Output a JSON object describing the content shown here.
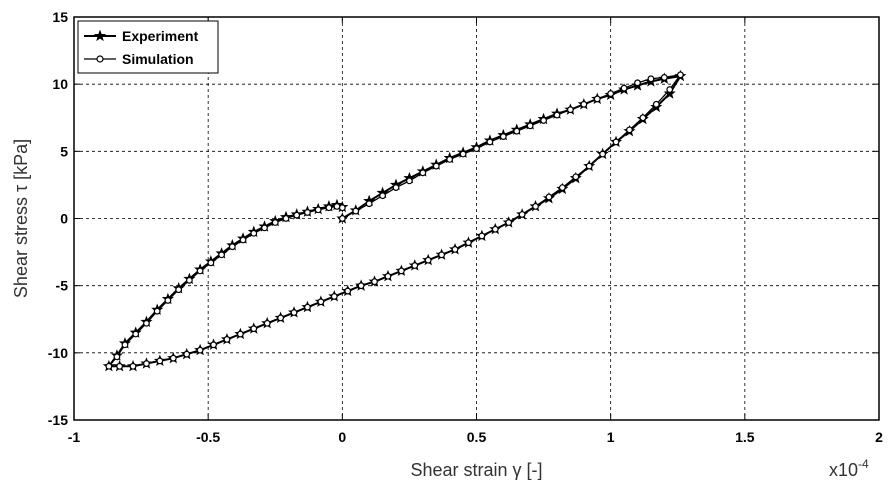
{
  "chart_data": {
    "type": "line",
    "title": "",
    "xlabel": "Shear strain γ [-]",
    "ylabel": "Shear stress τ [kPa]",
    "x_multiplier": {
      "base": "x10",
      "exponent": "-4"
    },
    "xlim": [
      -1,
      2
    ],
    "ylim": [
      -15,
      15
    ],
    "xticks": [
      -1,
      -0.5,
      0,
      0.5,
      1,
      1.5,
      2
    ],
    "yticks": [
      -15,
      -10,
      -5,
      0,
      5,
      10,
      15
    ],
    "xtick_labels": [
      "-1",
      "-0.5",
      "0",
      "0.5",
      "1",
      "1.5",
      "2"
    ],
    "ytick_labels": [
      "-15",
      "-10",
      "-5",
      "0",
      "5",
      "10",
      "15"
    ],
    "grid": true,
    "legend_position": "top-left",
    "series": [
      {
        "name": "Experiment",
        "marker": "star",
        "x": [
          0.0,
          0.05,
          0.1,
          0.15,
          0.2,
          0.25,
          0.3,
          0.35,
          0.4,
          0.45,
          0.5,
          0.55,
          0.6,
          0.65,
          0.7,
          0.75,
          0.8,
          0.85,
          0.9,
          0.95,
          1.0,
          1.05,
          1.1,
          1.15,
          1.2,
          1.26,
          1.22,
          1.17,
          1.12,
          1.07,
          1.02,
          0.97,
          0.92,
          0.87,
          0.82,
          0.77,
          0.72,
          0.67,
          0.62,
          0.57,
          0.52,
          0.47,
          0.42,
          0.37,
          0.32,
          0.27,
          0.22,
          0.17,
          0.12,
          0.07,
          0.02,
          -0.03,
          -0.08,
          -0.13,
          -0.18,
          -0.23,
          -0.28,
          -0.33,
          -0.38,
          -0.43,
          -0.48,
          -0.53,
          -0.58,
          -0.63,
          -0.68,
          -0.73,
          -0.78,
          -0.83,
          -0.87,
          -0.84,
          -0.81,
          -0.77,
          -0.73,
          -0.69,
          -0.65,
          -0.61,
          -0.57,
          -0.53,
          -0.49,
          -0.45,
          -0.41,
          -0.37,
          -0.33,
          -0.29,
          -0.25,
          -0.21,
          -0.17,
          -0.13,
          -0.09,
          -0.05,
          -0.02,
          0.0
        ],
        "y": [
          0.0,
          0.6,
          1.3,
          1.9,
          2.5,
          3.0,
          3.5,
          4.0,
          4.5,
          4.9,
          5.3,
          5.8,
          6.2,
          6.6,
          7.0,
          7.4,
          7.8,
          8.1,
          8.5,
          8.9,
          9.2,
          9.6,
          9.9,
          10.2,
          10.4,
          10.6,
          9.3,
          8.3,
          7.4,
          6.5,
          5.7,
          4.8,
          3.9,
          3.0,
          2.2,
          1.5,
          0.9,
          0.3,
          -0.3,
          -0.8,
          -1.3,
          -1.8,
          -2.3,
          -2.7,
          -3.1,
          -3.5,
          -3.9,
          -4.3,
          -4.7,
          -5.0,
          -5.4,
          -5.8,
          -6.2,
          -6.6,
          -7.0,
          -7.4,
          -7.8,
          -8.2,
          -8.6,
          -9.0,
          -9.4,
          -9.8,
          -10.1,
          -10.4,
          -10.6,
          -10.8,
          -11.0,
          -11.0,
          -11.0,
          -10.2,
          -9.3,
          -8.5,
          -7.7,
          -6.8,
          -6.0,
          -5.2,
          -4.5,
          -3.8,
          -3.2,
          -2.6,
          -2.0,
          -1.5,
          -1.0,
          -0.6,
          -0.2,
          0.1,
          0.3,
          0.5,
          0.7,
          0.9,
          1.0,
          0.85
        ]
      },
      {
        "name": "Simulation",
        "marker": "open-circle",
        "x": [
          0.0,
          0.05,
          0.1,
          0.15,
          0.2,
          0.25,
          0.3,
          0.35,
          0.4,
          0.45,
          0.5,
          0.55,
          0.6,
          0.65,
          0.7,
          0.75,
          0.8,
          0.85,
          0.9,
          0.95,
          1.0,
          1.05,
          1.1,
          1.15,
          1.2,
          1.26,
          1.22,
          1.17,
          1.12,
          1.07,
          1.02,
          0.97,
          0.92,
          0.87,
          0.82,
          0.77,
          0.72,
          0.67,
          0.62,
          0.57,
          0.52,
          0.47,
          0.42,
          0.37,
          0.32,
          0.27,
          0.22,
          0.17,
          0.12,
          0.07,
          0.02,
          -0.03,
          -0.08,
          -0.13,
          -0.18,
          -0.23,
          -0.28,
          -0.33,
          -0.38,
          -0.43,
          -0.48,
          -0.53,
          -0.58,
          -0.63,
          -0.68,
          -0.73,
          -0.78,
          -0.83,
          -0.87,
          -0.84,
          -0.81,
          -0.77,
          -0.73,
          -0.69,
          -0.65,
          -0.61,
          -0.57,
          -0.53,
          -0.49,
          -0.45,
          -0.41,
          -0.37,
          -0.33,
          -0.29,
          -0.25,
          -0.21,
          -0.17,
          -0.13,
          -0.09,
          -0.05,
          -0.02,
          0.0
        ],
        "y": [
          0.0,
          0.55,
          1.1,
          1.7,
          2.3,
          2.8,
          3.4,
          3.9,
          4.4,
          4.8,
          5.2,
          5.7,
          6.1,
          6.5,
          6.9,
          7.3,
          7.7,
          8.1,
          8.5,
          8.9,
          9.3,
          9.7,
          10.1,
          10.4,
          10.5,
          10.7,
          9.6,
          8.5,
          7.5,
          6.6,
          5.7,
          4.8,
          3.9,
          3.1,
          2.3,
          1.6,
          0.9,
          0.3,
          -0.3,
          -0.8,
          -1.3,
          -1.8,
          -2.3,
          -2.7,
          -3.1,
          -3.5,
          -3.9,
          -4.3,
          -4.7,
          -5.0,
          -5.4,
          -5.8,
          -6.2,
          -6.6,
          -7.0,
          -7.4,
          -7.8,
          -8.2,
          -8.6,
          -9.0,
          -9.4,
          -9.8,
          -10.1,
          -10.4,
          -10.6,
          -10.8,
          -11.0,
          -11.0,
          -11.0,
          -10.3,
          -9.4,
          -8.6,
          -7.8,
          -6.9,
          -6.1,
          -5.3,
          -4.6,
          -3.9,
          -3.3,
          -2.7,
          -2.1,
          -1.6,
          -1.1,
          -0.7,
          -0.3,
          0.0,
          0.25,
          0.45,
          0.65,
          0.8,
          0.9,
          0.8
        ]
      }
    ]
  }
}
